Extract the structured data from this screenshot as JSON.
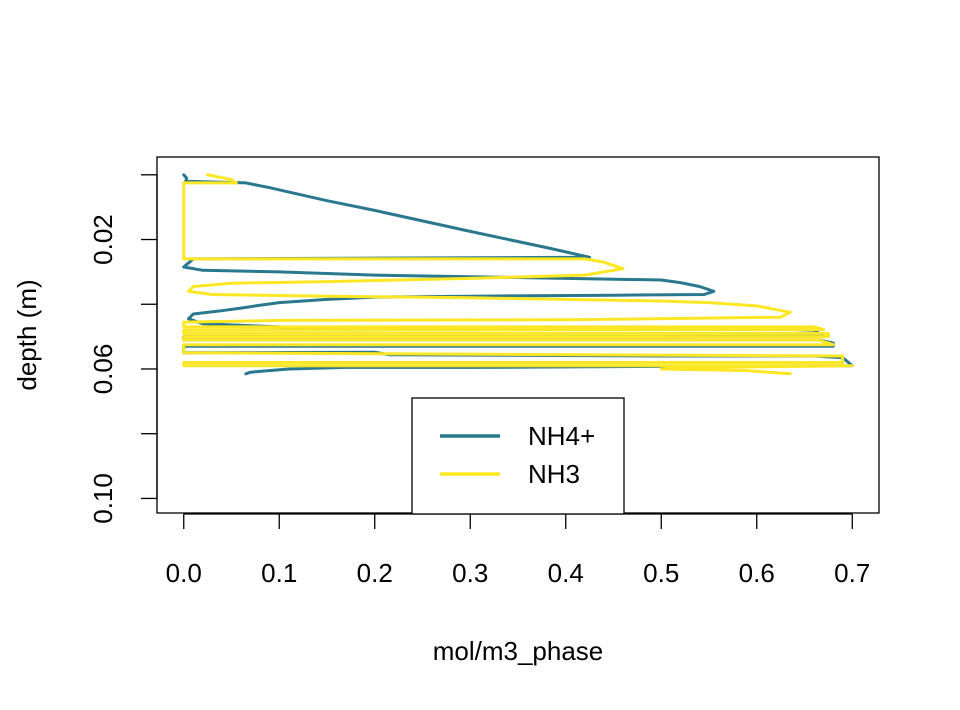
{
  "chart_data": {
    "type": "line",
    "title": "",
    "xlabel": "mol/m3_phase",
    "ylabel": "depth (m)",
    "xlim": [
      -0.028,
      0.728
    ],
    "ylim": [
      0.1045,
      -0.0055
    ],
    "x_ticks": [
      0.0,
      0.1,
      0.2,
      0.3,
      0.4,
      0.5,
      0.6,
      0.7
    ],
    "x_tick_labels": [
      "0.0",
      "0.1",
      "0.2",
      "0.3",
      "0.4",
      "0.5",
      "0.6",
      "0.7"
    ],
    "y_ticks": [
      0.0,
      0.02,
      0.04,
      0.06,
      0.08,
      0.1
    ],
    "y_tick_labels": [
      "",
      "0.02",
      "",
      "0.06",
      "",
      "0.10"
    ],
    "legend": {
      "position": "bottom-center",
      "entries": [
        "NH4+",
        "NH3"
      ]
    },
    "series": [
      {
        "name": "NH4+",
        "color": "#2a788e",
        "points": [
          [
            0.0,
            0.0
          ],
          [
            0.003,
            0.001
          ],
          [
            0.002,
            0.002
          ],
          [
            0.065,
            0.0025
          ],
          [
            0.09,
            0.004
          ],
          [
            0.15,
            0.008
          ],
          [
            0.2,
            0.011
          ],
          [
            0.3,
            0.0175
          ],
          [
            0.38,
            0.0225
          ],
          [
            0.425,
            0.0255
          ],
          [
            0.42,
            0.0255
          ],
          [
            0.01,
            0.026
          ],
          [
            0.0,
            0.0285
          ],
          [
            0.02,
            0.0295
          ],
          [
            0.1,
            0.03
          ],
          [
            0.2,
            0.031
          ],
          [
            0.3,
            0.0315
          ],
          [
            0.4,
            0.032
          ],
          [
            0.5,
            0.0325
          ],
          [
            0.52,
            0.0333
          ],
          [
            0.54,
            0.0345
          ],
          [
            0.555,
            0.036
          ],
          [
            0.545,
            0.037
          ],
          [
            0.45,
            0.0372
          ],
          [
            0.3,
            0.0375
          ],
          [
            0.2,
            0.0378
          ],
          [
            0.15,
            0.0385
          ],
          [
            0.1,
            0.0395
          ],
          [
            0.075,
            0.0405
          ],
          [
            0.06,
            0.0412
          ],
          [
            0.04,
            0.042
          ],
          [
            0.01,
            0.043
          ],
          [
            0.005,
            0.0445
          ],
          [
            0.02,
            0.046
          ],
          [
            0.1,
            0.047
          ],
          [
            0.3,
            0.0473
          ],
          [
            0.5,
            0.0475
          ],
          [
            0.6,
            0.0475
          ],
          [
            0.66,
            0.048
          ],
          [
            0.67,
            0.0498
          ],
          [
            0.5,
            0.05
          ],
          [
            0.0,
            0.05
          ],
          [
            0.0,
            0.051
          ],
          [
            0.665,
            0.051
          ],
          [
            0.68,
            0.052
          ],
          [
            0.68,
            0.053
          ],
          [
            0.0,
            0.053
          ],
          [
            0.0,
            0.055
          ],
          [
            0.2,
            0.0548
          ],
          [
            0.215,
            0.0556
          ],
          [
            0.5,
            0.056
          ],
          [
            0.66,
            0.056
          ],
          [
            0.69,
            0.0565
          ],
          [
            0.7,
            0.059
          ],
          [
            0.5,
            0.0592
          ],
          [
            0.3,
            0.0595
          ],
          [
            0.17,
            0.0595
          ],
          [
            0.11,
            0.06
          ],
          [
            0.07,
            0.061
          ],
          [
            0.065,
            0.0615
          ]
        ]
      },
      {
        "name": "NH3",
        "color": "#fde725",
        "points": [
          [
            0.025,
            0.0
          ],
          [
            0.05,
            0.0015
          ],
          [
            0.055,
            0.0025
          ],
          [
            0.0,
            0.0025
          ],
          [
            0.0,
            0.026
          ],
          [
            0.42,
            0.026
          ],
          [
            0.44,
            0.027
          ],
          [
            0.46,
            0.029
          ],
          [
            0.42,
            0.031
          ],
          [
            0.3,
            0.032
          ],
          [
            0.15,
            0.033
          ],
          [
            0.05,
            0.0335
          ],
          [
            0.01,
            0.0345
          ],
          [
            0.005,
            0.036
          ],
          [
            0.03,
            0.037
          ],
          [
            0.15,
            0.0375
          ],
          [
            0.3,
            0.038
          ],
          [
            0.5,
            0.039
          ],
          [
            0.55,
            0.0395
          ],
          [
            0.6,
            0.0405
          ],
          [
            0.635,
            0.0425
          ],
          [
            0.625,
            0.044
          ],
          [
            0.4,
            0.0448
          ],
          [
            0.1,
            0.045
          ],
          [
            0.0,
            0.0455
          ],
          [
            0.0,
            0.047
          ],
          [
            0.66,
            0.047
          ],
          [
            0.67,
            0.0478
          ],
          [
            0.0,
            0.048
          ],
          [
            0.0,
            0.049
          ],
          [
            0.675,
            0.049
          ],
          [
            0.675,
            0.05
          ],
          [
            0.0,
            0.05
          ],
          [
            0.0,
            0.051
          ],
          [
            0.665,
            0.051
          ],
          [
            0.68,
            0.0525
          ],
          [
            0.0,
            0.0525
          ],
          [
            0.0,
            0.055
          ],
          [
            0.69,
            0.056
          ],
          [
            0.69,
            0.058
          ],
          [
            0.0,
            0.058
          ],
          [
            0.0,
            0.059
          ],
          [
            0.7,
            0.059
          ],
          [
            0.55,
            0.0595
          ],
          [
            0.5,
            0.06
          ],
          [
            0.59,
            0.0605
          ],
          [
            0.635,
            0.0615
          ]
        ]
      }
    ]
  }
}
